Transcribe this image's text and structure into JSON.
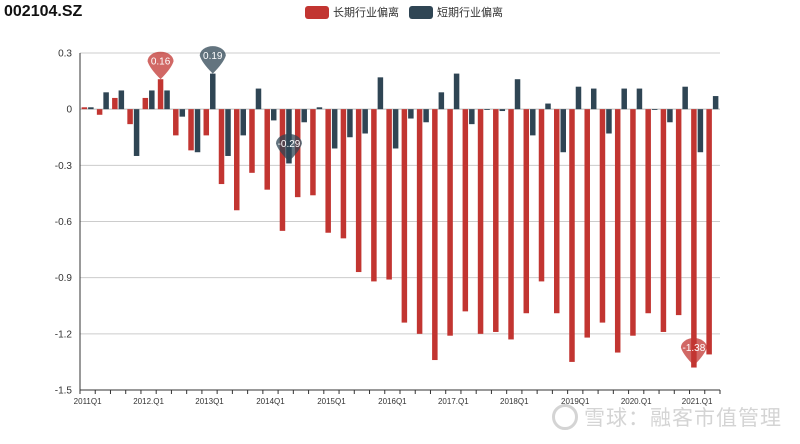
{
  "page": {
    "title": "002104.SZ"
  },
  "watermark": {
    "text": "雪球：融客市值管理"
  },
  "chart_data": {
    "type": "bar",
    "title": "002104.SZ",
    "ylim": [
      -1.5,
      0.3
    ],
    "yticks": [
      0.3,
      0,
      -0.3,
      -0.6,
      -0.9,
      -1.2,
      -1.5
    ],
    "ytick_labels": [
      "0.3",
      "0",
      "-0.3",
      "-0.6",
      "-0.9",
      "-1.2",
      "-1.5"
    ],
    "grid": true,
    "legend_position": "top-center",
    "categories": [
      "2011Q1",
      "2011Q2",
      "2011Q3",
      "2011Q4",
      "2012.Q1",
      "2012.Q2",
      "2012.Q3",
      "2012.Q4",
      "2013Q1",
      "2013Q2",
      "2013Q3",
      "2013Q4",
      "2014Q1",
      "2014Q2",
      "2014Q3",
      "2014Q4",
      "2015Q1",
      "2015Q2",
      "2015Q3",
      "2015Q4",
      "2016Q1",
      "2016Q2",
      "2016Q3",
      "2016Q4",
      "2017.Q1",
      "2017.Q2",
      "2017.Q3",
      "2017.Q4",
      "2018Q1",
      "2018Q2",
      "2018Q3",
      "2018Q4",
      "2019Q1",
      "2019Q2",
      "2019Q3",
      "2019Q4",
      "2020.Q1",
      "2020.Q2",
      "2020.Q3",
      "2020.Q4",
      "2021.Q1",
      "2021.Q2"
    ],
    "visible_tick_indices": [
      0,
      4,
      8,
      12,
      16,
      20,
      24,
      28,
      32,
      36,
      40
    ],
    "visible_tick_labels": [
      "2011Q1",
      "2012.Q1",
      "2013Q1",
      "2014Q1",
      "2015Q1",
      "2016Q1",
      "2017.Q1",
      "2018Q1",
      "2019Q1",
      "2020.Q1",
      "2021.Q1"
    ],
    "series": [
      {
        "name": "长期行业偏离",
        "color": "#c23531",
        "values": [
          0.01,
          -0.03,
          0.06,
          -0.08,
          0.06,
          0.16,
          -0.14,
          -0.22,
          -0.14,
          -0.4,
          -0.54,
          -0.34,
          -0.43,
          -0.65,
          -0.47,
          -0.46,
          -0.66,
          -0.69,
          -0.87,
          -0.92,
          -0.91,
          -1.14,
          -1.2,
          -1.34,
          -1.21,
          -1.08,
          -1.2,
          -1.19,
          -1.23,
          -1.09,
          -0.92,
          -1.09,
          -1.35,
          -1.22,
          -1.14,
          -1.3,
          -1.21,
          -1.09,
          -1.19,
          -1.1,
          -1.38,
          -1.31
        ]
      },
      {
        "name": "短期行业偏离",
        "color": "#2f4554",
        "values": [
          0.01,
          0.09,
          0.1,
          -0.25,
          0.1,
          0.1,
          -0.04,
          -0.23,
          0.19,
          -0.25,
          -0.14,
          0.11,
          -0.06,
          -0.29,
          -0.07,
          0.01,
          -0.21,
          -0.15,
          -0.13,
          0.17,
          -0.21,
          -0.05,
          -0.07,
          0.09,
          0.19,
          -0.08,
          0.0,
          -0.01,
          0.16,
          -0.14,
          0.03,
          -0.23,
          0.12,
          0.11,
          -0.13,
          0.11,
          0.11,
          0.0,
          -0.07,
          0.12,
          -0.23,
          0.07
        ]
      }
    ],
    "markers": [
      {
        "label": "0.16",
        "series": 0,
        "index": 5
      },
      {
        "label": "0.19",
        "series": 1,
        "index": 8
      },
      {
        "label": "-0.29",
        "series": 1,
        "index": 13
      },
      {
        "label": "-1.38",
        "series": 0,
        "index": 40
      }
    ]
  }
}
